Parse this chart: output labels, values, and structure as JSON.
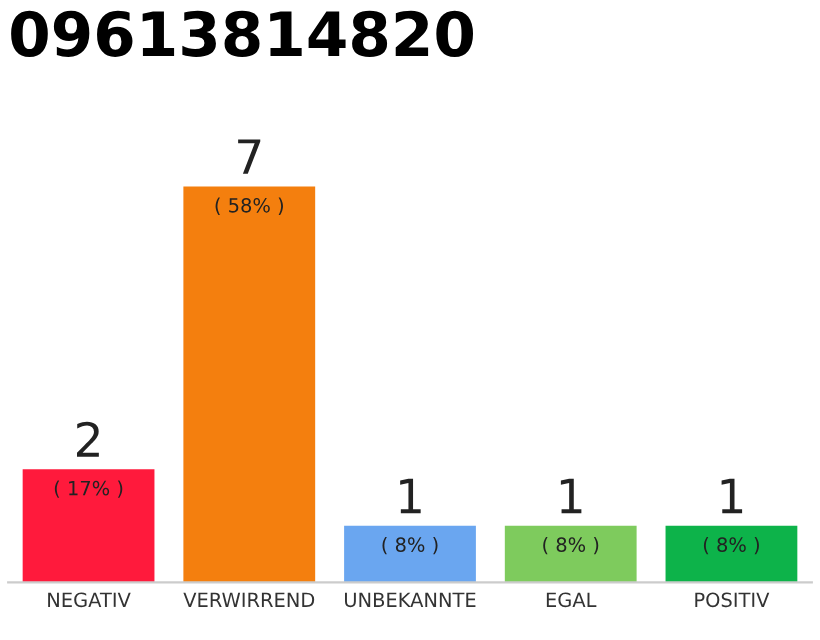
{
  "chart_data": {
    "type": "bar",
    "title": "09613814820",
    "categories": [
      "NEGATIV",
      "VERWIRREND",
      "UNBEKANNTE",
      "EGAL",
      "POSITIV"
    ],
    "values": [
      2,
      7,
      1,
      1,
      1
    ],
    "colors": [
      "#ff1a3c",
      "#f47f0e",
      "#6aa6f0",
      "#7ecb5d",
      "#0db34a"
    ],
    "data_labels": true,
    "annotations": [
      {
        "text": "( 17% )",
        "x": "NEGATIV",
        "y": 2
      },
      {
        "text": "( 58% )",
        "x": "VERWIRREND",
        "y": 7
      },
      {
        "text": "( 8% )",
        "x": "UNBEKANNTE",
        "y": 1
      },
      {
        "text": "( 8% )",
        "x": "EGAL",
        "y": 1
      },
      {
        "text": "( 8% )",
        "x": "POSITIV",
        "y": 1
      }
    ],
    "tick_labels": "x",
    "grid": false,
    "legend": false
  }
}
